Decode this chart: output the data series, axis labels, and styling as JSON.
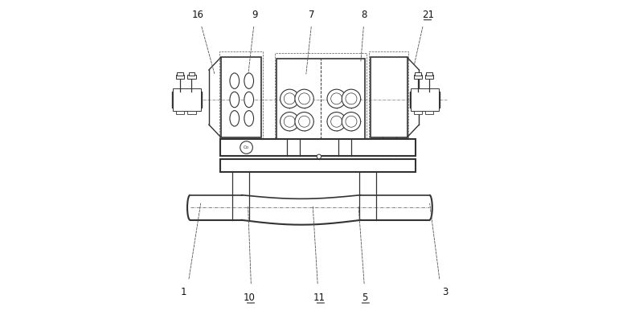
{
  "bg_color": "#ffffff",
  "line_color": "#333333",
  "dashed_color": "#555555",
  "figsize": [
    8.0,
    3.92
  ],
  "dpi": 100
}
